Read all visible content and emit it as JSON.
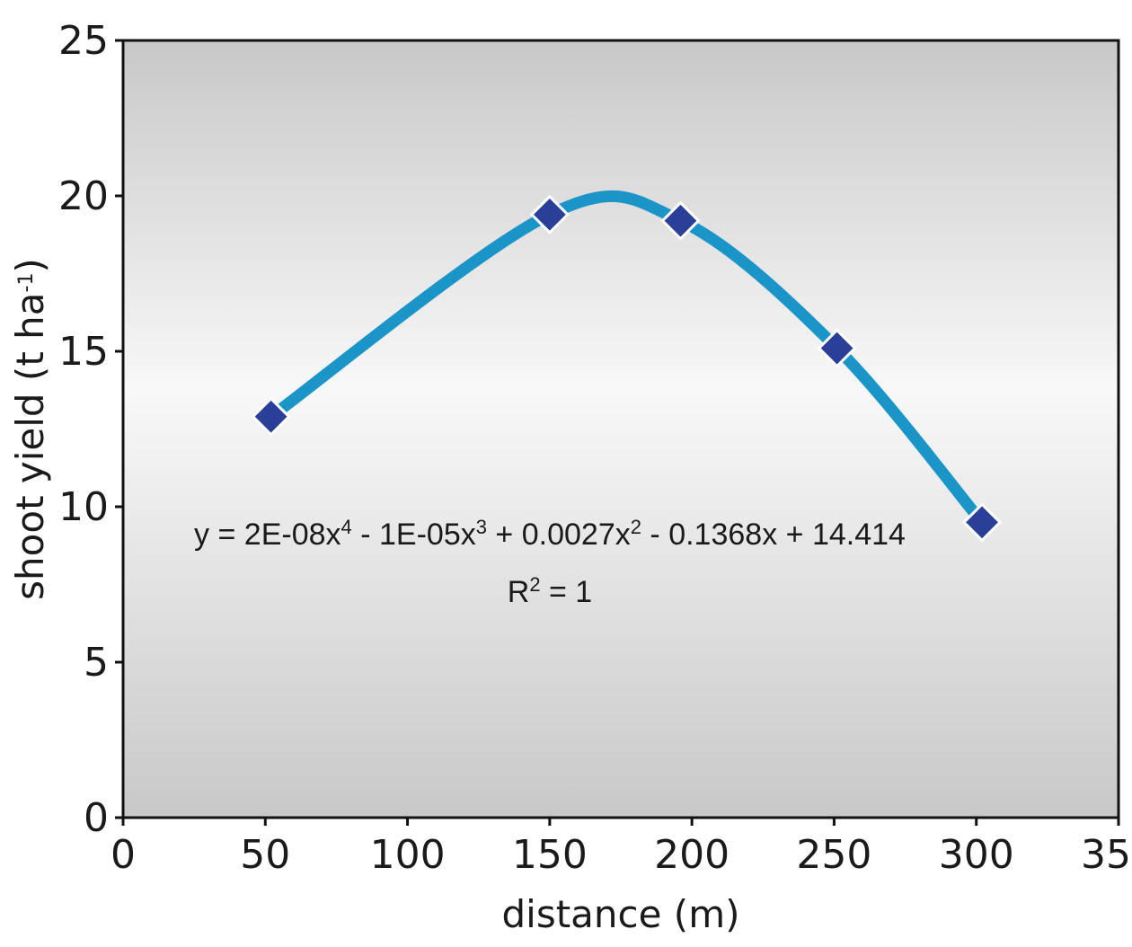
{
  "chart_data": {
    "type": "scatter",
    "title": "",
    "xlabel": "distance (m)",
    "ylabel_main": "shoot yield (t ha",
    "ylabel_sup": "-1",
    "ylabel_close": ")",
    "xlim": [
      0,
      350
    ],
    "ylim": [
      0,
      25
    ],
    "x_ticks": [
      0,
      50,
      100,
      150,
      200,
      250,
      300,
      350
    ],
    "y_ticks": [
      0,
      5,
      10,
      15,
      20,
      25
    ],
    "grid": false,
    "legend": "none",
    "series": [
      {
        "x": [
          52,
          150,
          196,
          251,
          302
        ],
        "y": [
          12.9,
          19.4,
          19.2,
          15.1,
          9.5
        ],
        "marker": "diamond",
        "marker_color": "#2a3f98",
        "trendline": {
          "type": "polynomial",
          "order": 4,
          "color": "#1b95c8"
        }
      }
    ],
    "annotations": {
      "equation": {
        "parts": [
          "y = 2E-08x",
          "4",
          " - 1E-05x",
          "3",
          " + 0.0027x",
          "2",
          " - 0.1368x + 14.414"
        ]
      },
      "r2": {
        "parts": [
          "R",
          "2",
          " = 1"
        ]
      }
    },
    "colors": {
      "plot_bg_edge": "#c8c8c8",
      "plot_bg_center": "#f8f8f8",
      "axis": "#111111"
    }
  }
}
